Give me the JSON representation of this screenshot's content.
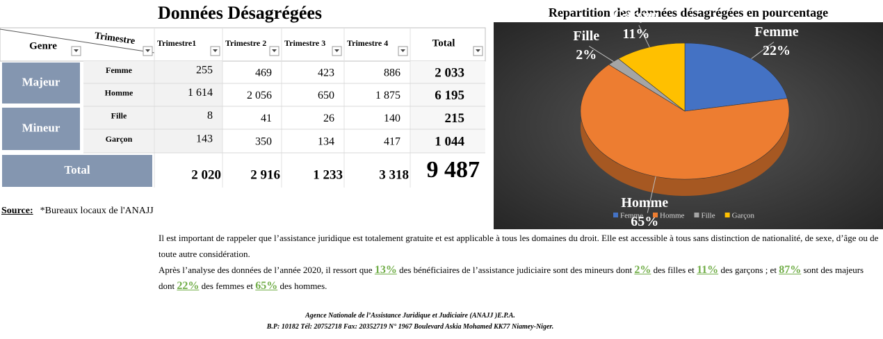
{
  "table": {
    "title": "Données Désagrégées",
    "corner": {
      "top": "Trimestre",
      "bottom": "Genre"
    },
    "columns": [
      "Trimestre1",
      "Trimestre 2",
      "Trimestre 3",
      "Trimestre 4",
      "Total"
    ],
    "groups": [
      {
        "label": "Majeur",
        "rows": [
          {
            "label": "Femme",
            "values": [
              "255",
              "469",
              "423",
              "886",
              "2 033"
            ]
          },
          {
            "label": "Homme",
            "values": [
              "1 614",
              "2 056",
              "650",
              "1 875",
              "6 195"
            ]
          }
        ]
      },
      {
        "label": "Mineur",
        "rows": [
          {
            "label": "Fille",
            "values": [
              "8",
              "41",
              "26",
              "140",
              "215"
            ]
          },
          {
            "label": "Garçon",
            "values": [
              "143",
              "350",
              "134",
              "417",
              "1 044"
            ]
          }
        ]
      }
    ],
    "total": {
      "label": "Total",
      "values": [
        "2 020",
        "2 916",
        "1 233",
        "3 318",
        "9 487"
      ]
    }
  },
  "source": {
    "label": "Source:",
    "text": "*Bureaux locaux de l'ANAJJ"
  },
  "chart_data": {
    "type": "pie",
    "title": "Repartition des données désagrégées en pourcentage",
    "categories": [
      "Femme",
      "Homme",
      "Fille",
      "Garçon"
    ],
    "values": [
      22,
      65,
      2,
      11
    ],
    "value_labels": [
      "22%",
      "65%",
      "2%",
      "11%"
    ],
    "colors": [
      "#4472c4",
      "#ed7d31",
      "#a5a5a5",
      "#ffc000"
    ],
    "legend": "bottom"
  },
  "paragraphs": [
    [
      "Il est important de rappeler que l’assistance juridique est totalement gratuite et est applicable à tous les domaines du droit. Elle est accessible à tous sans distinction de nationalité, de sexe, d’âge ou de toute autre considération."
    ],
    [
      "Après l’analyse des données de l’année 2020, il ressort que ",
      "13%",
      " des bénéficiaires de l’assistance judiciaire sont des mineurs dont ",
      "2%",
      " des filles et ",
      "11%",
      " des garçons ; et ",
      "87%",
      " sont des majeurs dont ",
      "22%",
      " des femmes et ",
      "65%",
      " des hommes."
    ]
  ],
  "footer": [
    "Agence Nationale de l’Assistance Juridique et Judiciaire (ANAJJ )E.P.A.",
    "B.P: 10182 Tél: 20752718 Fax: 20352719 N° 1967 Boulevard Askia Mohamed KK77 Niamey-Niger."
  ]
}
